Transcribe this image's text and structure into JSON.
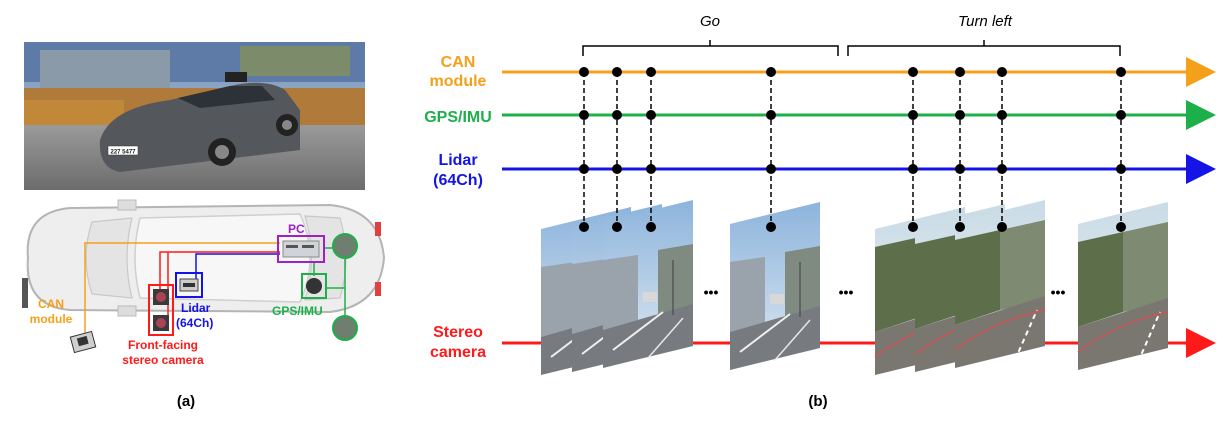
{
  "panel_a": {
    "caption": "(a)",
    "labels": {
      "pc": "PC",
      "lidar_line1": "Lidar",
      "lidar_line2": "(64Ch)",
      "can_line1": "CAN",
      "can_line2": "module",
      "gps": "GPS/IMU",
      "cam_line1": "Front-facing",
      "cam_line2": "stereo camera"
    },
    "photo_plate": "227 5477"
  },
  "panel_b": {
    "caption": "(b)",
    "phases": {
      "go": "Go",
      "turn_left": "Turn left"
    },
    "sensors": {
      "can_line1": "CAN",
      "can_line2": "module",
      "gps": "GPS/IMU",
      "lidar_line1": "Lidar",
      "lidar_line2": "(64Ch)",
      "stereo_line1": "Stereo",
      "stereo_line2": "camera"
    },
    "ellipsis": "•••",
    "colors": {
      "can": "#f5a01a",
      "gps": "#1db04a",
      "lidar": "#1414e6",
      "stereo": "#ff1a1a",
      "pc": "#a020c8"
    }
  }
}
